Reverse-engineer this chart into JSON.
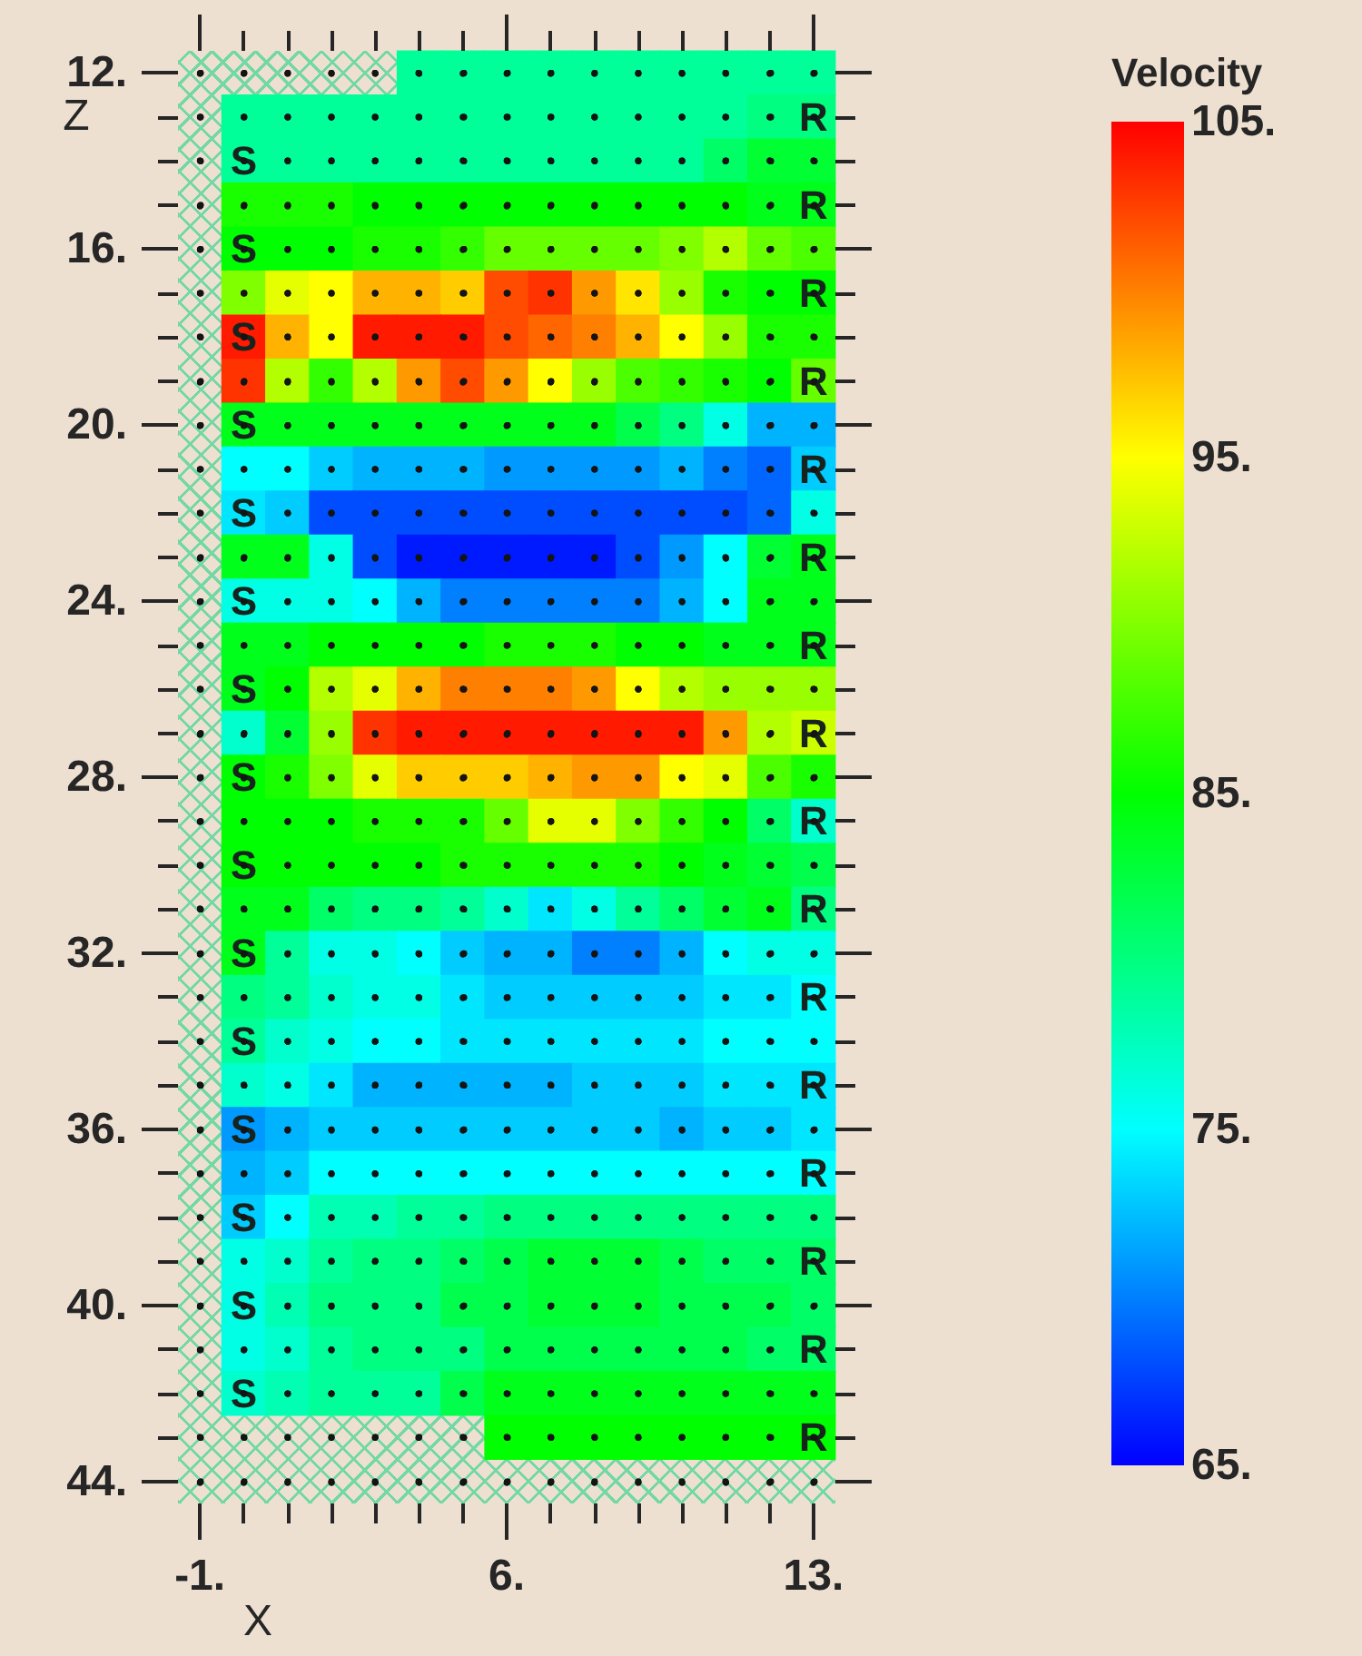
{
  "chart_data": {
    "type": "heatmap",
    "xlabel": "X",
    "ylabel": "Z",
    "clabel": "Velocity",
    "grid": true,
    "categories": [
      "-1.",
      null,
      null,
      null,
      null,
      null,
      null,
      "6.",
      null,
      null,
      null,
      null,
      null,
      null,
      "13."
    ],
    "y_categories": [
      "12.",
      null,
      null,
      null,
      "16.",
      null,
      null,
      null,
      "20.",
      null,
      null,
      null,
      "24.",
      null,
      null,
      null,
      "28.",
      null,
      null,
      null,
      "32.",
      null,
      null,
      null,
      "36.",
      null,
      null,
      null,
      "40.",
      null,
      null,
      null,
      "44."
    ],
    "cells": [
      [
        null,
        null,
        null,
        null,
        null,
        79,
        79,
        79,
        79,
        79,
        79,
        79,
        79,
        79,
        79
      ],
      [
        null,
        79,
        79,
        79,
        79,
        79,
        79,
        79,
        79,
        79,
        79,
        79,
        79,
        80,
        80
      ],
      [
        null,
        79,
        79,
        79,
        79,
        79,
        79,
        79,
        79,
        79,
        79,
        79,
        81,
        83,
        83
      ],
      [
        null,
        86,
        86,
        86,
        85,
        85,
        85,
        85,
        85,
        85,
        85,
        85,
        85,
        84,
        84
      ],
      [
        null,
        85,
        85,
        85,
        86,
        86,
        87,
        89,
        89,
        89,
        89,
        90,
        92,
        89,
        88
      ],
      [
        null,
        90,
        94,
        95,
        98,
        98,
        97,
        102,
        103,
        99,
        96,
        91,
        86,
        85,
        85
      ],
      [
        null,
        104,
        98,
        95,
        104,
        104,
        104,
        102,
        101,
        100,
        98,
        95,
        91,
        86,
        86
      ],
      [
        null,
        103,
        92,
        87,
        92,
        99,
        102,
        99,
        95,
        91,
        88,
        87,
        86,
        85,
        89
      ],
      [
        null,
        84,
        84,
        84,
        84,
        84,
        84,
        84,
        84,
        84,
        82,
        80,
        76,
        72,
        72
      ],
      [
        null,
        75,
        75,
        73,
        72,
        72,
        72,
        71,
        71,
        71,
        71,
        72,
        70,
        69,
        73
      ],
      [
        null,
        74,
        73,
        68,
        68,
        68,
        68,
        68,
        68,
        68,
        68,
        68,
        68,
        69,
        76
      ],
      [
        null,
        84,
        84,
        76,
        68,
        66,
        66,
        66,
        66,
        66,
        68,
        71,
        75,
        83,
        84
      ],
      [
        null,
        76,
        76,
        76,
        75,
        72,
        70,
        70,
        70,
        70,
        70,
        72,
        75,
        84,
        84
      ],
      [
        null,
        84,
        84,
        85,
        85,
        85,
        85,
        86,
        86,
        86,
        85,
        85,
        84,
        84,
        84
      ],
      [
        null,
        84,
        85,
        92,
        94,
        98,
        100,
        100,
        100,
        99,
        95,
        92,
        91,
        91,
        91
      ],
      [
        null,
        77,
        83,
        91,
        103,
        104,
        104,
        104,
        104,
        104,
        104,
        104,
        99,
        92,
        93
      ],
      [
        null,
        85,
        86,
        90,
        94,
        97,
        97,
        97,
        98,
        99,
        99,
        95,
        94,
        88,
        86
      ],
      [
        null,
        85,
        85,
        85,
        86,
        86,
        86,
        89,
        94,
        94,
        90,
        87,
        85,
        81,
        77
      ],
      [
        null,
        85,
        85,
        85,
        85,
        85,
        86,
        86,
        86,
        86,
        86,
        85,
        84,
        83,
        82
      ],
      [
        null,
        84,
        84,
        81,
        80,
        80,
        79,
        77,
        74,
        76,
        79,
        81,
        83,
        84,
        80
      ],
      [
        null,
        84,
        79,
        76,
        76,
        75,
        73,
        72,
        72,
        70,
        70,
        72,
        75,
        76,
        76
      ],
      [
        null,
        80,
        79,
        77,
        76,
        76,
        74,
        73,
        73,
        73,
        73,
        73,
        74,
        74,
        75
      ],
      [
        null,
        79,
        77,
        76,
        75,
        75,
        74,
        74,
        74,
        74,
        74,
        74,
        75,
        75,
        75
      ],
      [
        null,
        77,
        76,
        74,
        72,
        72,
        72,
        72,
        72,
        73,
        73,
        73,
        74,
        74,
        74
      ],
      [
        null,
        71,
        72,
        73,
        73,
        73,
        73,
        73,
        73,
        73,
        73,
        72,
        73,
        73,
        74
      ],
      [
        null,
        72,
        73,
        75,
        75,
        75,
        75,
        75,
        75,
        75,
        75,
        75,
        75,
        75,
        75
      ],
      [
        null,
        73,
        75,
        78,
        78,
        79,
        79,
        80,
        80,
        80,
        80,
        80,
        80,
        80,
        80
      ],
      [
        null,
        76,
        77,
        79,
        80,
        80,
        81,
        82,
        83,
        83,
        83,
        82,
        81,
        81,
        81
      ],
      [
        null,
        76,
        78,
        80,
        80,
        80,
        82,
        82,
        83,
        83,
        83,
        82,
        82,
        82,
        81
      ],
      [
        null,
        76,
        77,
        79,
        80,
        80,
        80,
        82,
        82,
        82,
        82,
        82,
        82,
        81,
        81
      ],
      [
        null,
        77,
        78,
        79,
        79,
        79,
        82,
        84,
        84,
        84,
        84,
        84,
        84,
        84,
        84
      ],
      [
        null,
        null,
        null,
        null,
        null,
        null,
        null,
        85,
        85,
        85,
        85,
        85,
        85,
        85,
        85
      ],
      [
        null,
        null,
        null,
        null,
        null,
        null,
        null,
        null,
        null,
        null,
        null,
        null,
        null,
        null,
        null
      ]
    ],
    "cell_labels": [
      [
        null,
        null,
        null,
        null,
        null,
        null,
        null,
        null,
        null,
        null,
        null,
        null,
        null,
        null,
        null
      ],
      [
        null,
        null,
        null,
        null,
        null,
        null,
        null,
        null,
        null,
        null,
        null,
        null,
        null,
        null,
        "R"
      ],
      [
        null,
        "S",
        null,
        null,
        null,
        null,
        null,
        null,
        null,
        null,
        null,
        null,
        null,
        null,
        null
      ],
      [
        null,
        null,
        null,
        null,
        null,
        null,
        null,
        null,
        null,
        null,
        null,
        null,
        null,
        null,
        "R"
      ],
      [
        null,
        "S",
        null,
        null,
        null,
        null,
        null,
        null,
        null,
        null,
        null,
        null,
        null,
        null,
        null
      ],
      [
        null,
        null,
        null,
        null,
        null,
        null,
        null,
        null,
        null,
        null,
        null,
        null,
        null,
        null,
        "R"
      ],
      [
        null,
        "S",
        null,
        null,
        null,
        null,
        null,
        null,
        null,
        null,
        null,
        null,
        null,
        null,
        null
      ],
      [
        null,
        null,
        null,
        null,
        null,
        null,
        null,
        null,
        null,
        null,
        null,
        null,
        null,
        null,
        "R"
      ],
      [
        null,
        "S",
        null,
        null,
        null,
        null,
        null,
        null,
        null,
        null,
        null,
        null,
        null,
        null,
        null
      ],
      [
        null,
        null,
        null,
        null,
        null,
        null,
        null,
        null,
        null,
        null,
        null,
        null,
        null,
        null,
        "R"
      ],
      [
        null,
        "S",
        null,
        null,
        null,
        null,
        null,
        null,
        null,
        null,
        null,
        null,
        null,
        null,
        null
      ],
      [
        null,
        null,
        null,
        null,
        null,
        null,
        null,
        null,
        null,
        null,
        null,
        null,
        null,
        null,
        "R"
      ],
      [
        null,
        "S",
        null,
        null,
        null,
        null,
        null,
        null,
        null,
        null,
        null,
        null,
        null,
        null,
        null
      ],
      [
        null,
        null,
        null,
        null,
        null,
        null,
        null,
        null,
        null,
        null,
        null,
        null,
        null,
        null,
        "R"
      ],
      [
        null,
        "S",
        null,
        null,
        null,
        null,
        null,
        null,
        null,
        null,
        null,
        null,
        null,
        null,
        null
      ],
      [
        null,
        null,
        null,
        null,
        null,
        null,
        null,
        null,
        null,
        null,
        null,
        null,
        null,
        null,
        "R"
      ],
      [
        null,
        "S",
        null,
        null,
        null,
        null,
        null,
        null,
        null,
        null,
        null,
        null,
        null,
        null,
        null
      ],
      [
        null,
        null,
        null,
        null,
        null,
        null,
        null,
        null,
        null,
        null,
        null,
        null,
        null,
        null,
        "R"
      ],
      [
        null,
        "S",
        null,
        null,
        null,
        null,
        null,
        null,
        null,
        null,
        null,
        null,
        null,
        null,
        null
      ],
      [
        null,
        null,
        null,
        null,
        null,
        null,
        null,
        null,
        null,
        null,
        null,
        null,
        null,
        null,
        "R"
      ],
      [
        null,
        "S",
        null,
        null,
        null,
        null,
        null,
        null,
        null,
        null,
        null,
        null,
        null,
        null,
        null
      ],
      [
        null,
        null,
        null,
        null,
        null,
        null,
        null,
        null,
        null,
        null,
        null,
        null,
        null,
        null,
        "R"
      ],
      [
        null,
        "S",
        null,
        null,
        null,
        null,
        null,
        null,
        null,
        null,
        null,
        null,
        null,
        null,
        null
      ],
      [
        null,
        null,
        null,
        null,
        null,
        null,
        null,
        null,
        null,
        null,
        null,
        null,
        null,
        null,
        "R"
      ],
      [
        null,
        "S",
        null,
        null,
        null,
        null,
        null,
        null,
        null,
        null,
        null,
        null,
        null,
        null,
        null
      ],
      [
        null,
        null,
        null,
        null,
        null,
        null,
        null,
        null,
        null,
        null,
        null,
        null,
        null,
        null,
        "R"
      ],
      [
        null,
        "S",
        null,
        null,
        null,
        null,
        null,
        null,
        null,
        null,
        null,
        null,
        null,
        null,
        null
      ],
      [
        null,
        null,
        null,
        null,
        null,
        null,
        null,
        null,
        null,
        null,
        null,
        null,
        null,
        null,
        "R"
      ],
      [
        null,
        "S",
        null,
        null,
        null,
        null,
        null,
        null,
        null,
        null,
        null,
        null,
        null,
        null,
        null
      ],
      [
        null,
        null,
        null,
        null,
        null,
        null,
        null,
        null,
        null,
        null,
        null,
        null,
        null,
        null,
        "R"
      ],
      [
        null,
        "S",
        null,
        null,
        null,
        null,
        null,
        null,
        null,
        null,
        null,
        null,
        null,
        null,
        null
      ],
      [
        null,
        null,
        null,
        null,
        null,
        null,
        null,
        null,
        null,
        null,
        null,
        null,
        null,
        null,
        "R"
      ],
      [
        null,
        null,
        null,
        null,
        null,
        null,
        null,
        null,
        null,
        null,
        null,
        null,
        null,
        null,
        null
      ]
    ],
    "clim": [
      65,
      105
    ],
    "cticks": [
      {
        "value": 65,
        "label": "65."
      },
      {
        "value": 75,
        "label": "75."
      },
      {
        "value": 85,
        "label": "85."
      },
      {
        "value": 95,
        "label": "95."
      },
      {
        "value": 105,
        "label": "105."
      }
    ]
  }
}
